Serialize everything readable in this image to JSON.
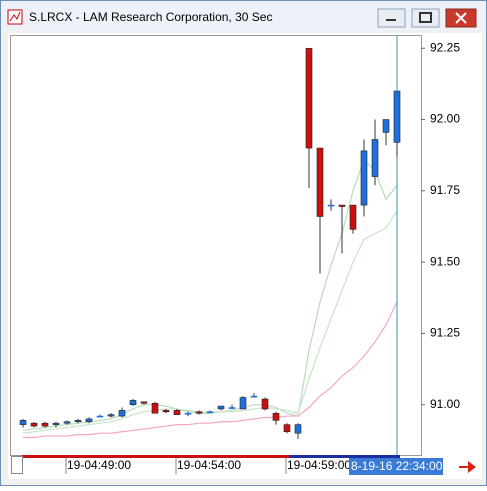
{
  "chart_data": {
    "type": "candlestick",
    "title": "S.LRCX - LAM Research Corporation, 30 Sec",
    "categories": [
      null,
      null,
      null,
      null,
      "19-04:49:00",
      null,
      null,
      null,
      null,
      null,
      null,
      null,
      null,
      null,
      "19-04:54:00",
      null,
      null,
      null,
      null,
      null,
      null,
      null,
      null,
      null,
      "19-04:59:00",
      null,
      null,
      null,
      null,
      null,
      null,
      null,
      null,
      null,
      null
    ],
    "open": [
      90.93,
      90.935,
      90.935,
      90.93,
      90.935,
      90.94,
      90.94,
      90.96,
      90.96,
      90.96,
      91.0,
      91.01,
      91.005,
      90.98,
      90.98,
      90.97,
      90.975,
      90.975,
      90.985,
      90.99,
      90.985,
      91.03,
      91.02,
      90.97,
      90.93,
      90.9,
      92.25,
      91.9,
      91.7,
      91.7,
      91.7,
      91.7,
      91.8,
      91.955,
      91.92
    ],
    "high": [
      90.95,
      90.94,
      90.94,
      90.94,
      90.945,
      90.95,
      90.955,
      90.965,
      90.97,
      90.99,
      91.02,
      91.01,
      91.01,
      90.985,
      90.985,
      90.975,
      90.98,
      90.98,
      90.995,
      91.0,
      91.03,
      91.04,
      91.025,
      90.975,
      90.935,
      90.935,
      92.25,
      91.9,
      91.72,
      91.7,
      91.7,
      91.93,
      92.0,
      92.0,
      92.1
    ],
    "low": [
      90.92,
      90.92,
      90.92,
      90.92,
      90.93,
      90.935,
      90.935,
      90.955,
      90.955,
      90.955,
      90.995,
      91.0,
      90.97,
      90.97,
      90.965,
      90.96,
      90.965,
      90.97,
      90.98,
      90.985,
      90.985,
      91.025,
      90.98,
      90.93,
      90.9,
      90.88,
      91.76,
      91.46,
      91.68,
      91.53,
      91.6,
      91.66,
      91.77,
      91.91,
      91.87
    ],
    "close": [
      90.945,
      90.925,
      90.925,
      90.935,
      90.94,
      90.945,
      90.95,
      90.96,
      90.965,
      90.98,
      91.015,
      91.005,
      90.97,
      90.975,
      90.965,
      90.97,
      90.97,
      90.975,
      90.995,
      90.99,
      91.025,
      91.03,
      90.985,
      90.945,
      90.905,
      90.93,
      91.9,
      91.66,
      91.7,
      91.695,
      91.615,
      91.89,
      91.93,
      92.0,
      92.1
    ],
    "up_color": "#1f6fdc",
    "down_color": "#cc1010",
    "overlays": [
      {
        "color": "#b9dcb9",
        "values": [
          90.91,
          90.915,
          90.92,
          90.925,
          90.93,
          90.935,
          90.94,
          90.945,
          90.95,
          90.965,
          90.985,
          91.0,
          91.0,
          90.995,
          90.985,
          90.975,
          90.97,
          90.97,
          90.975,
          90.98,
          90.99,
          91.0,
          91.0,
          90.99,
          90.97,
          90.96,
          91.19,
          91.36,
          91.49,
          91.6,
          91.75,
          91.86,
          91.82,
          91.72,
          91.77
        ]
      },
      {
        "color": "#c8e4c8",
        "values": [
          90.9,
          90.905,
          90.91,
          90.915,
          90.92,
          90.925,
          90.93,
          90.935,
          90.94,
          90.95,
          90.965,
          90.975,
          90.98,
          90.985,
          90.985,
          90.98,
          90.975,
          90.975,
          90.975,
          90.975,
          90.98,
          90.985,
          90.99,
          90.985,
          90.98,
          90.97,
          91.09,
          91.2,
          91.3,
          91.4,
          91.5,
          91.58,
          91.6,
          91.62,
          91.68
        ]
      },
      {
        "color": "#f4a6c4",
        "values": [
          90.885,
          90.885,
          90.89,
          90.89,
          90.89,
          90.895,
          90.895,
          90.9,
          90.9,
          90.905,
          90.91,
          90.915,
          90.92,
          90.925,
          90.93,
          90.93,
          90.935,
          90.935,
          90.94,
          90.94,
          90.945,
          90.95,
          90.955,
          90.955,
          90.96,
          90.96,
          90.99,
          91.03,
          91.06,
          91.1,
          91.13,
          91.17,
          91.22,
          91.28,
          91.36
        ]
      }
    ],
    "cursor_label": "8-19-16 22:34:00",
    "ylim": [
      90.82,
      92.3
    ],
    "yticks": [
      {
        "value": 91.0,
        "label": "91.00"
      },
      91.25,
      {
        "value": 91.5,
        "label": "91.50"
      },
      91.75,
      {
        "value": 92.0,
        "label": "92.00"
      },
      92.25
    ]
  }
}
